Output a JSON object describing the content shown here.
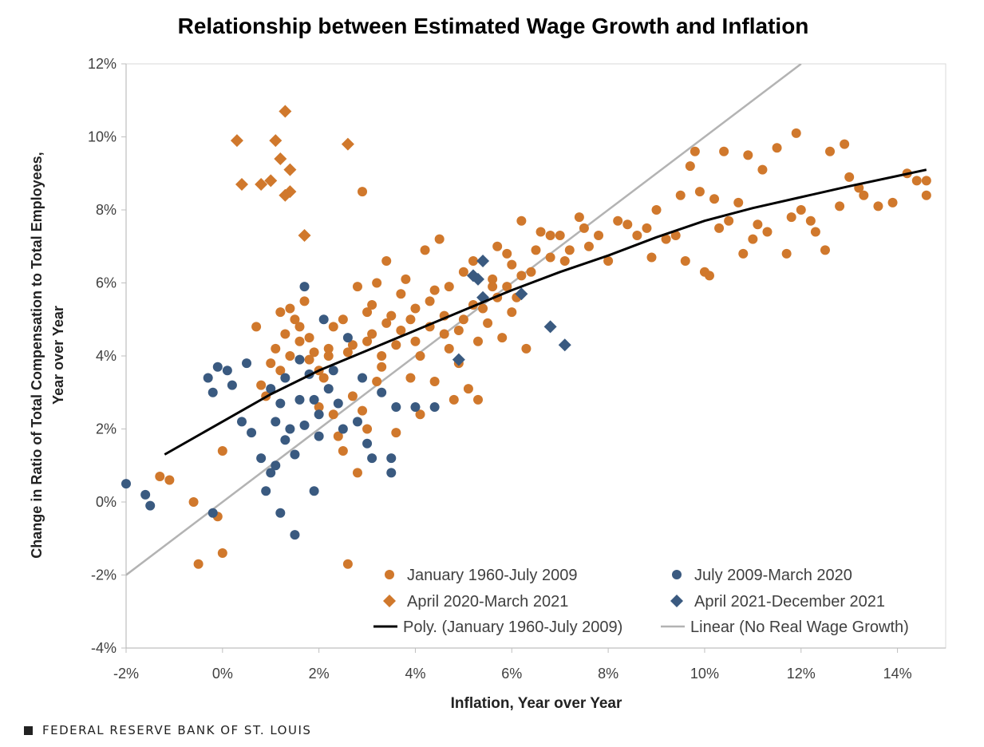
{
  "chart_data": {
    "type": "scatter",
    "title": "Relationship between Estimated Wage Growth and Inflation",
    "xlabel": "Inflation, Year over Year",
    "ylabel_line1": "Change in Ratio of Total Compensation to Total Employees,",
    "ylabel_line2": "Year over Year",
    "xlim": [
      -2,
      15
    ],
    "ylim": [
      -4,
      12
    ],
    "xticks": [
      -2,
      0,
      2,
      4,
      6,
      8,
      10,
      12,
      14
    ],
    "yticks": [
      -4,
      -2,
      0,
      2,
      4,
      6,
      8,
      10,
      12
    ],
    "tick_suffix": "%",
    "legend": [
      {
        "label": "January 1960-July 2009",
        "marker": "circle",
        "color": "#d0782c"
      },
      {
        "label": "July 2009-March 2020",
        "marker": "circle",
        "color": "#3a5a80"
      },
      {
        "label": "April 2020-March 2021",
        "marker": "diamond",
        "color": "#d0782c"
      },
      {
        "label": "April 2021-December 2021",
        "marker": "diamond",
        "color": "#3a5a80"
      },
      {
        "label": "Poly. (January 1960-July 2009)",
        "marker": "line",
        "color": "#000000"
      },
      {
        "label": "Linear (No Real Wage Growth)",
        "marker": "line",
        "color": "#b3b3b3"
      }
    ],
    "series": [
      {
        "name": "January 1960-July 2009",
        "marker": "circle",
        "color": "#d0782c",
        "points": [
          [
            -1.3,
            0.7
          ],
          [
            -1.1,
            0.6
          ],
          [
            -0.6,
            0.0
          ],
          [
            -0.5,
            -1.7
          ],
          [
            -0.1,
            -0.4
          ],
          [
            0.0,
            -1.4
          ],
          [
            0.0,
            1.4
          ],
          [
            0.7,
            4.8
          ],
          [
            0.8,
            3.2
          ],
          [
            0.9,
            2.9
          ],
          [
            1.0,
            3.8
          ],
          [
            1.1,
            4.2
          ],
          [
            1.2,
            3.6
          ],
          [
            1.3,
            4.6
          ],
          [
            1.4,
            5.3
          ],
          [
            1.5,
            5.0
          ],
          [
            1.6,
            4.4
          ],
          [
            1.7,
            5.5
          ],
          [
            1.8,
            3.9
          ],
          [
            1.9,
            4.1
          ],
          [
            2.0,
            3.6
          ],
          [
            2.0,
            2.6
          ],
          [
            2.1,
            3.4
          ],
          [
            2.2,
            4.2
          ],
          [
            2.3,
            2.4
          ],
          [
            2.4,
            1.8
          ],
          [
            2.5,
            1.4
          ],
          [
            2.6,
            -1.7
          ],
          [
            2.7,
            2.9
          ],
          [
            2.8,
            5.9
          ],
          [
            2.8,
            0.8
          ],
          [
            2.9,
            2.5
          ],
          [
            2.9,
            8.5
          ],
          [
            3.0,
            5.2
          ],
          [
            3.0,
            2.0
          ],
          [
            3.1,
            4.6
          ],
          [
            3.2,
            6.0
          ],
          [
            3.2,
            3.3
          ],
          [
            3.3,
            4.0
          ],
          [
            3.4,
            6.6
          ],
          [
            3.5,
            5.1
          ],
          [
            3.6,
            1.9
          ],
          [
            3.7,
            4.7
          ],
          [
            3.8,
            6.1
          ],
          [
            3.9,
            3.4
          ],
          [
            4.0,
            4.4
          ],
          [
            4.1,
            2.4
          ],
          [
            4.2,
            6.9
          ],
          [
            4.3,
            5.5
          ],
          [
            4.4,
            3.3
          ],
          [
            4.5,
            7.2
          ],
          [
            4.6,
            4.6
          ],
          [
            4.7,
            5.9
          ],
          [
            4.8,
            2.8
          ],
          [
            4.9,
            3.8
          ],
          [
            5.0,
            6.3
          ],
          [
            5.1,
            3.1
          ],
          [
            5.2,
            5.4
          ],
          [
            5.3,
            2.8
          ],
          [
            5.5,
            4.9
          ],
          [
            5.6,
            6.1
          ],
          [
            5.7,
            7.0
          ],
          [
            5.8,
            4.5
          ],
          [
            5.9,
            5.9
          ],
          [
            6.0,
            6.5
          ],
          [
            6.1,
            5.6
          ],
          [
            6.2,
            7.7
          ],
          [
            6.3,
            4.2
          ],
          [
            6.4,
            6.3
          ],
          [
            6.6,
            7.4
          ],
          [
            6.8,
            6.7
          ],
          [
            7.0,
            7.3
          ],
          [
            7.2,
            6.9
          ],
          [
            7.4,
            7.8
          ],
          [
            7.6,
            7.0
          ],
          [
            7.8,
            7.3
          ],
          [
            8.0,
            6.6
          ],
          [
            8.2,
            7.7
          ],
          [
            8.4,
            7.6
          ],
          [
            8.6,
            7.3
          ],
          [
            8.8,
            7.5
          ],
          [
            8.9,
            6.7
          ],
          [
            9.0,
            8.0
          ],
          [
            9.2,
            7.2
          ],
          [
            9.4,
            7.3
          ],
          [
            9.5,
            8.4
          ],
          [
            9.6,
            6.6
          ],
          [
            9.7,
            9.2
          ],
          [
            9.8,
            9.6
          ],
          [
            9.9,
            8.5
          ],
          [
            10.0,
            6.3
          ],
          [
            10.1,
            6.2
          ],
          [
            10.2,
            8.3
          ],
          [
            10.3,
            7.5
          ],
          [
            10.4,
            9.6
          ],
          [
            10.5,
            7.7
          ],
          [
            10.7,
            8.2
          ],
          [
            10.8,
            6.8
          ],
          [
            10.9,
            9.5
          ],
          [
            11.0,
            7.2
          ],
          [
            11.1,
            7.6
          ],
          [
            11.2,
            9.1
          ],
          [
            11.3,
            7.4
          ],
          [
            11.5,
            9.7
          ],
          [
            11.7,
            6.8
          ],
          [
            11.8,
            7.8
          ],
          [
            11.9,
            10.1
          ],
          [
            12.0,
            8.0
          ],
          [
            12.2,
            7.7
          ],
          [
            12.3,
            7.4
          ],
          [
            12.5,
            6.9
          ],
          [
            12.6,
            9.6
          ],
          [
            12.8,
            8.1
          ],
          [
            12.9,
            9.8
          ],
          [
            13.0,
            8.9
          ],
          [
            13.2,
            8.6
          ],
          [
            13.3,
            8.4
          ],
          [
            13.6,
            8.1
          ],
          [
            13.9,
            8.2
          ],
          [
            14.2,
            9.0
          ],
          [
            14.4,
            8.8
          ],
          [
            14.6,
            8.4
          ],
          [
            14.6,
            8.8
          ],
          [
            1.2,
            5.2
          ],
          [
            1.6,
            4.8
          ],
          [
            2.2,
            4.0
          ],
          [
            2.5,
            5.0
          ],
          [
            2.7,
            4.3
          ],
          [
            3.1,
            5.4
          ],
          [
            3.3,
            3.7
          ],
          [
            3.6,
            4.3
          ],
          [
            3.9,
            5.0
          ],
          [
            4.1,
            4.0
          ],
          [
            4.4,
            5.8
          ],
          [
            4.6,
            5.1
          ],
          [
            4.9,
            4.7
          ],
          [
            5.2,
            6.6
          ],
          [
            5.4,
            5.3
          ],
          [
            5.7,
            5.6
          ],
          [
            5.9,
            6.8
          ],
          [
            6.2,
            6.2
          ],
          [
            6.5,
            6.9
          ],
          [
            6.8,
            7.3
          ],
          [
            7.1,
            6.6
          ],
          [
            7.5,
            7.5
          ],
          [
            1.4,
            4.0
          ],
          [
            1.8,
            4.5
          ],
          [
            2.3,
            4.8
          ],
          [
            2.6,
            4.1
          ],
          [
            3.0,
            4.4
          ],
          [
            3.4,
            4.9
          ],
          [
            3.7,
            5.7
          ],
          [
            4.0,
            5.3
          ],
          [
            4.3,
            4.8
          ],
          [
            4.7,
            4.2
          ],
          [
            5.0,
            5.0
          ],
          [
            5.3,
            4.4
          ],
          [
            5.6,
            5.9
          ],
          [
            6.0,
            5.2
          ]
        ]
      },
      {
        "name": "July 2009-March 2020",
        "marker": "circle",
        "color": "#3a5a80",
        "points": [
          [
            -2.0,
            0.5
          ],
          [
            -1.6,
            0.2
          ],
          [
            -1.5,
            -0.1
          ],
          [
            -0.2,
            -0.3
          ],
          [
            -0.3,
            3.4
          ],
          [
            -0.2,
            3.0
          ],
          [
            -0.1,
            3.7
          ],
          [
            0.1,
            3.6
          ],
          [
            0.2,
            3.2
          ],
          [
            0.4,
            2.2
          ],
          [
            0.6,
            1.9
          ],
          [
            0.8,
            1.2
          ],
          [
            0.9,
            0.3
          ],
          [
            1.0,
            0.8
          ],
          [
            1.1,
            2.2
          ],
          [
            1.2,
            -0.3
          ],
          [
            1.3,
            1.7
          ],
          [
            1.4,
            2.0
          ],
          [
            1.5,
            -0.9
          ],
          [
            1.5,
            1.3
          ],
          [
            1.6,
            2.8
          ],
          [
            1.7,
            5.9
          ],
          [
            1.8,
            3.5
          ],
          [
            1.9,
            0.3
          ],
          [
            2.0,
            2.4
          ],
          [
            2.1,
            5.0
          ],
          [
            2.2,
            3.1
          ],
          [
            2.4,
            2.7
          ],
          [
            2.6,
            4.5
          ],
          [
            2.8,
            2.2
          ],
          [
            3.0,
            1.6
          ],
          [
            3.1,
            1.2
          ],
          [
            3.3,
            3.0
          ],
          [
            3.5,
            0.8
          ],
          [
            3.5,
            1.2
          ],
          [
            3.6,
            2.6
          ],
          [
            4.0,
            2.6
          ],
          [
            4.4,
            2.6
          ],
          [
            1.0,
            3.1
          ],
          [
            1.3,
            3.4
          ],
          [
            1.6,
            3.9
          ],
          [
            1.9,
            2.8
          ],
          [
            2.3,
            3.6
          ],
          [
            2.5,
            2.0
          ],
          [
            2.9,
            3.4
          ],
          [
            1.2,
            2.7
          ],
          [
            1.7,
            2.1
          ],
          [
            2.0,
            1.8
          ],
          [
            0.5,
            3.8
          ],
          [
            1.1,
            1.0
          ]
        ]
      },
      {
        "name": "April 2020-March 2021",
        "marker": "diamond",
        "color": "#d0782c",
        "points": [
          [
            0.3,
            9.9
          ],
          [
            0.4,
            8.7
          ],
          [
            0.8,
            8.7
          ],
          [
            1.0,
            8.8
          ],
          [
            1.1,
            9.9
          ],
          [
            1.2,
            9.4
          ],
          [
            1.3,
            10.7
          ],
          [
            1.3,
            8.4
          ],
          [
            1.4,
            9.1
          ],
          [
            1.4,
            8.5
          ],
          [
            1.7,
            7.3
          ],
          [
            2.6,
            9.8
          ]
        ]
      },
      {
        "name": "April 2021-December 2021",
        "marker": "diamond",
        "color": "#3a5a80",
        "points": [
          [
            4.9,
            3.9
          ],
          [
            5.2,
            6.2
          ],
          [
            5.3,
            6.1
          ],
          [
            5.4,
            6.6
          ],
          [
            5.4,
            5.6
          ],
          [
            6.2,
            5.7
          ],
          [
            6.8,
            4.8
          ],
          [
            7.1,
            4.3
          ]
        ]
      },
      {
        "name": "Poly. (January 1960-July 2009)",
        "type": "line",
        "color": "#000000",
        "x": [
          -1.2,
          0,
          1,
          2,
          3,
          4,
          5,
          6,
          7,
          8,
          9,
          10,
          11,
          12,
          13,
          14.6
        ],
        "y": [
          1.3,
          2.2,
          2.95,
          3.6,
          4.15,
          4.7,
          5.25,
          5.8,
          6.3,
          6.75,
          7.25,
          7.7,
          8.05,
          8.35,
          8.65,
          9.1
        ]
      },
      {
        "name": "Linear (No Real Wage Growth)",
        "type": "line",
        "color": "#b3b3b3",
        "x": [
          -2,
          12
        ],
        "y": [
          -2,
          12
        ]
      }
    ]
  },
  "footer": {
    "source": "FEDERAL RESERVE BANK OF ST. LOUIS"
  }
}
